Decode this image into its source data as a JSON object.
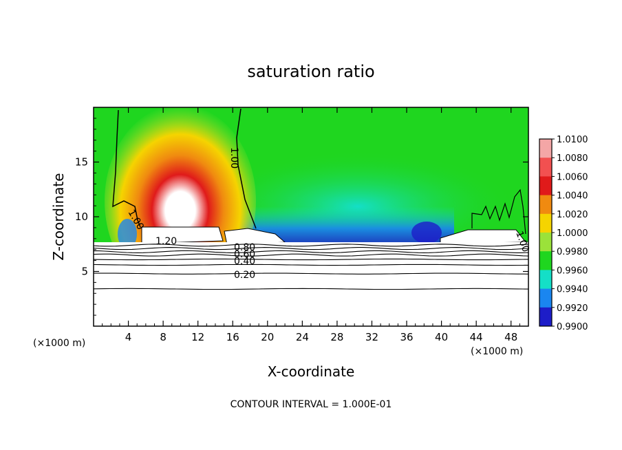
{
  "chart_data": {
    "type": "heatmap",
    "title": "saturation ratio",
    "xlabel": "X-coordinate",
    "ylabel": "Z-coordinate",
    "x_unit_left": "(×1000 m)",
    "x_unit_right": "(×1000 m)",
    "footer": "CONTOUR INTERVAL = 1.000E-01",
    "xlim": [
      0,
      50
    ],
    "ylim": [
      0,
      20
    ],
    "x_ticks": [
      4,
      8,
      12,
      16,
      20,
      24,
      28,
      32,
      36,
      40,
      44,
      48
    ],
    "y_ticks": [
      5,
      10,
      15
    ],
    "colorbar": {
      "levels": [
        "1.0100",
        "1.0080",
        "1.0060",
        "1.0040",
        "1.0020",
        "1.0000",
        "0.9980",
        "0.9960",
        "0.9940",
        "0.9920",
        "0.9900"
      ],
      "colors": [
        "#f4a6a6",
        "#f25050",
        "#e01a1a",
        "#f08a10",
        "#f5d400",
        "#9be23a",
        "#1fd61f",
        "#14dfc7",
        "#1a86f0",
        "#1d1dc8",
        "#6a1a9a"
      ]
    },
    "contour_labels": [
      "1.00",
      "1.00",
      "1.20",
      "0.80",
      "0.60",
      "0.40",
      "0.20",
      "1.00"
    ],
    "contour_lines_z": [
      3.4,
      4.8,
      5.6,
      6.1,
      6.5,
      6.8,
      7.1,
      7.4
    ],
    "regions": [
      {
        "name": "supersaturated-plume",
        "x_center": 10,
        "z_center": 11,
        "max_value": 1.01
      },
      {
        "name": "subsaturated-band",
        "x_range": [
          20,
          40
        ],
        "z_range": [
          7.5,
          10
        ],
        "min_value": 0.99
      },
      {
        "name": "cloud-top-white-left",
        "x_range": [
          6,
          15
        ],
        "z_range": [
          7.6,
          9
        ]
      },
      {
        "name": "cloud-top-white-mid",
        "x_range": [
          15.5,
          22
        ],
        "z_range": [
          7.6,
          8.8
        ]
      },
      {
        "name": "cloud-top-white-right",
        "x_range": [
          40,
          49
        ],
        "z_range": [
          7.6,
          8.9
        ]
      }
    ]
  }
}
